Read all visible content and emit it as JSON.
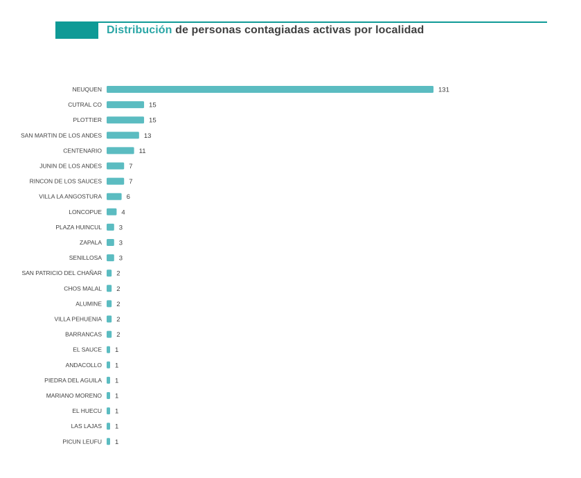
{
  "header": {
    "title_accent": "Distribución",
    "title_rest": " de personas contagiadas activas por localidad",
    "accent_color": "#0f9a96"
  },
  "chart_data": {
    "type": "bar",
    "orientation": "horizontal",
    "title": "Distribución de personas contagiadas activas por localidad",
    "xlabel": "",
    "ylabel": "",
    "bar_color": "#5bbcc1",
    "grid": false,
    "categories": [
      "NEUQUEN",
      "CUTRAL CO",
      "PLOTTIER",
      "SAN MARTIN DE LOS ANDES",
      "CENTENARIO",
      "JUNIN DE LOS ANDES",
      "RINCON DE LOS SAUCES",
      "VILLA LA ANGOSTURA",
      "LONCOPUE",
      "PLAZA HUINCUL",
      "ZAPALA",
      "SENILLOSA",
      "SAN PATRICIO DEL CHAÑAR",
      "CHOS MALAL",
      "ALUMINE",
      "VILLA PEHUENIA",
      "BARRANCAS",
      "EL SAUCE",
      "ANDACOLLO",
      "PIEDRA DEL AGUILA",
      "MARIANO MORENO",
      "EL HUECU",
      "LAS LAJAS",
      "PICUN LEUFU"
    ],
    "values": [
      131,
      15,
      15,
      13,
      11,
      7,
      7,
      6,
      4,
      3,
      3,
      3,
      2,
      2,
      2,
      2,
      2,
      1,
      1,
      1,
      1,
      1,
      1,
      1
    ]
  }
}
